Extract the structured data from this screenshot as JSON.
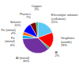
{
  "chart_data": {
    "type": "pie",
    "categories": [
      "Electrolyte solution\n(cellulose)",
      "Graphites\n(anode)",
      "Al",
      "Al (metal)",
      "Fe\n(metal)",
      "Fe (metal)",
      "Solvent",
      "Plastics",
      "Copper"
    ],
    "values": [
      21,
      18,
      2,
      39,
      4,
      4,
      11,
      7,
      2
    ],
    "value_labels": [
      "21%",
      "18%",
      "2%",
      "39%",
      "4%",
      "4%",
      "11%",
      "7%",
      "2%"
    ],
    "data_labels": true,
    "colors": [
      "#5bc8f5",
      "#ff0000",
      "#00b050",
      "#7030a0",
      "#00b0f0",
      "#ff6600",
      "#0000ff",
      "#7f0000",
      "#00b050"
    ]
  }
}
